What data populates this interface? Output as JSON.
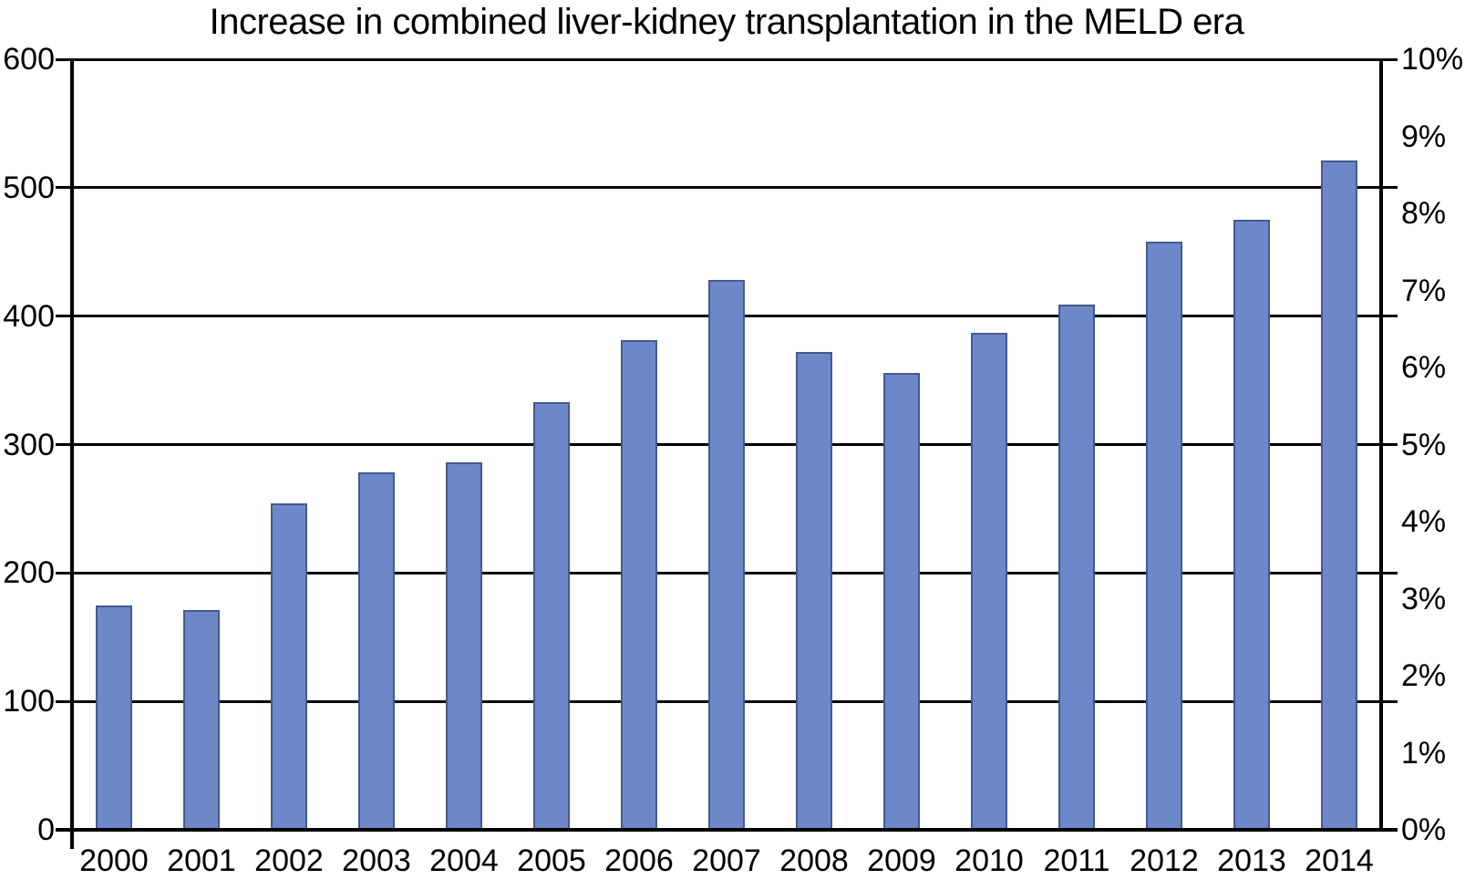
{
  "title": "Increase in combined liver-kidney transplantation in the MELD era",
  "chart_data": {
    "type": "bar",
    "title": "Increase in combined liver-kidney transplantation in the MELD era",
    "categories": [
      "2000",
      "2001",
      "2002",
      "2003",
      "2004",
      "2005",
      "2006",
      "2007",
      "2008",
      "2009",
      "2010",
      "2011",
      "2012",
      "2013",
      "2014"
    ],
    "values": [
      175,
      171,
      254,
      278,
      286,
      333,
      381,
      428,
      372,
      356,
      387,
      409,
      458,
      475,
      521
    ],
    "xlabel": "",
    "ylabel": "",
    "left_axis": {
      "tick_labels": [
        "600",
        "500",
        "400",
        "300",
        "200",
        "100",
        "0"
      ],
      "min": 0,
      "max": 600,
      "step": 100
    },
    "right_axis": {
      "tick_labels": [
        "10%",
        "9%",
        "8%",
        "7%",
        "6%",
        "5%",
        "4%",
        "3%",
        "2%",
        "1%",
        "0%"
      ],
      "min": 0,
      "max": 10,
      "step": 1
    },
    "grid": true,
    "legend": false,
    "colors": {
      "bar_fill": "#6C88C9",
      "bar_border": "#46598C",
      "axis": "#000000",
      "background": "#FFFFFF"
    }
  }
}
